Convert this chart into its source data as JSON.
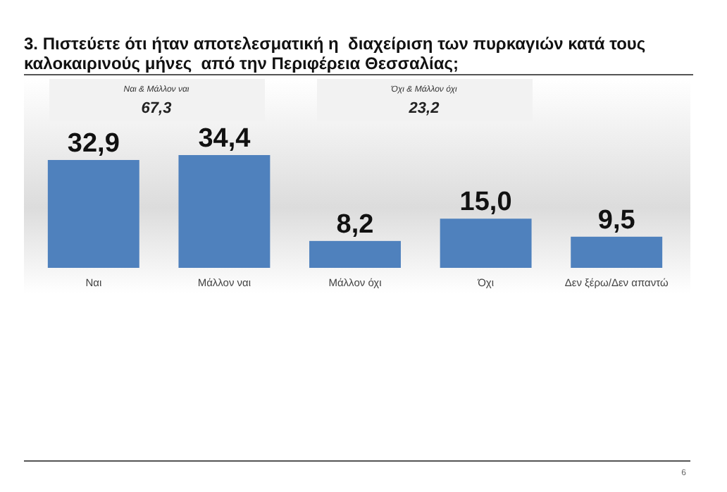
{
  "chart_data": {
    "type": "bar",
    "title": "3. Πιστεύετε ότι ήταν αποτελεσματική η  διαχείριση των πυρκαγιών κατά τους\nκαλοκαιρινούς μήνες  από την Περιφέρεια Θεσσαλίας;",
    "categories": [
      "Ναι",
      "Μάλλον ναι",
      "Μάλλον όχι",
      "Όχι",
      "Δεν ξέρω/Δεν απαντώ"
    ],
    "values": [
      32.9,
      34.4,
      8.2,
      15.0,
      9.5
    ],
    "value_labels": [
      "32,9",
      "34,4",
      "8,2",
      "15,0",
      "9,5"
    ],
    "color": "#4f81bd",
    "annotations": [
      "Ναι & Μάλλον ναι",
      "67,3",
      "Όχι & Μάλλον όχι",
      "23,2",
      "6"
    ]
  }
}
